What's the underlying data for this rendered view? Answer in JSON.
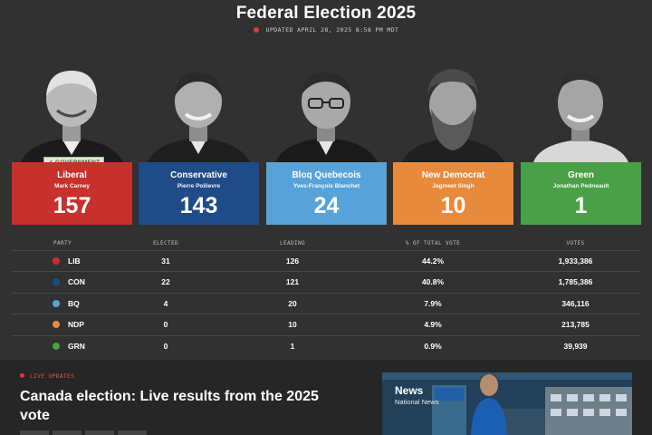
{
  "header": {
    "title": "Federal Election 2025",
    "updated": "UPDATED APRIL 28, 2025 8:58 PM MDT"
  },
  "candidates": [
    {
      "party": "Liberal",
      "leader": "Mark Carney",
      "seats": "157",
      "color": "#c8302b",
      "badge": "GOVERNMENT",
      "badge_icon": "check-icon"
    },
    {
      "party": "Conservative",
      "leader": "Pierre Poilievre",
      "seats": "143",
      "color": "#1f4c89"
    },
    {
      "party": "Bloq Quebecois",
      "leader": "Yves-François Blanchet",
      "seats": "24",
      "color": "#57a3d9"
    },
    {
      "party": "New Democrat",
      "leader": "Jagmeet Singh",
      "seats": "10",
      "color": "#e88a3c"
    },
    {
      "party": "Green",
      "leader": "Jonathan Pedneault",
      "seats": "1",
      "color": "#4aa046"
    }
  ],
  "table": {
    "headers": [
      "PARTY",
      "ELECTED",
      "LEADING",
      "% OF TOTAL VOTE",
      "VOTES"
    ],
    "rows": [
      {
        "party": "LIB",
        "color": "#c8302b",
        "elected": "31",
        "leading": "126",
        "pct": "44.2%",
        "votes": "1,933,386"
      },
      {
        "party": "CON",
        "color": "#1f4c89",
        "elected": "22",
        "leading": "121",
        "pct": "40.8%",
        "votes": "1,785,386"
      },
      {
        "party": "BQ",
        "color": "#57a3d9",
        "elected": "4",
        "leading": "20",
        "pct": "7.9%",
        "votes": "346,116"
      },
      {
        "party": "NDP",
        "color": "#e88a3c",
        "elected": "0",
        "leading": "10",
        "pct": "4.9%",
        "votes": "213,785"
      },
      {
        "party": "GRN",
        "color": "#4aa046",
        "elected": "0",
        "leading": "1",
        "pct": "0.9%",
        "votes": "39,939"
      }
    ]
  },
  "live": {
    "label": "LIVE UPDATES",
    "headline": "Canada election: Live results from the 2025 vote"
  },
  "video": {
    "title": "News",
    "subtitle": "National News"
  }
}
